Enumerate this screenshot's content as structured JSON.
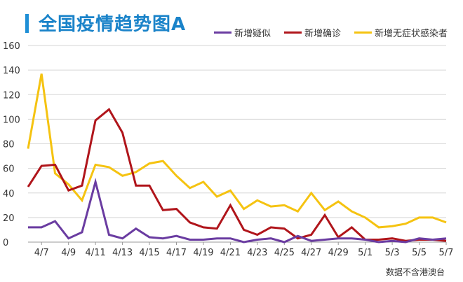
{
  "title": "全国疫情趋势图A",
  "source": "数据不含港澳台",
  "colors": {
    "suspected": "#6a3ca1",
    "confirmed": "#b0151b",
    "asymptomatic": "#f5c311",
    "title": "#1a83c9",
    "grid": "#d6d6d6"
  },
  "chart_data": {
    "type": "line",
    "ylim": [
      0,
      160
    ],
    "yticks": [
      0,
      20,
      40,
      60,
      80,
      100,
      120,
      140,
      160
    ],
    "grid": true,
    "legend_placement": "top-right",
    "x": [
      "4/6",
      "4/7",
      "4/8",
      "4/9",
      "4/10",
      "4/11",
      "4/12",
      "4/13",
      "4/14",
      "4/15",
      "4/16",
      "4/17",
      "4/18",
      "4/19",
      "4/20",
      "4/21",
      "4/22",
      "4/23",
      "4/24",
      "4/25",
      "4/26",
      "4/27",
      "4/28",
      "4/29",
      "4/30",
      "5/1",
      "5/2",
      "5/3",
      "5/4",
      "5/5",
      "5/6",
      "5/7"
    ],
    "xtick_labels": [
      "4/7",
      "4/9",
      "4/11",
      "4/13",
      "4/15",
      "4/17",
      "4/19",
      "4/21",
      "4/23",
      "4/25",
      "4/27",
      "4/29",
      "5/1",
      "5/3",
      "5/5",
      "5/7"
    ],
    "series": [
      {
        "name": "新增疑似",
        "key": "suspected",
        "values": [
          12,
          12,
          17,
          3,
          8,
          49,
          6,
          3,
          11,
          4,
          3,
          5,
          2,
          2,
          3,
          3,
          0,
          2,
          3,
          0,
          5,
          1,
          2,
          3,
          3,
          2,
          0,
          1,
          0,
          3,
          2,
          3
        ]
      },
      {
        "name": "新增确诊",
        "key": "confirmed",
        "values": [
          45,
          62,
          63,
          42,
          46,
          99,
          108,
          89,
          46,
          46,
          26,
          27,
          16,
          12,
          11,
          30,
          10,
          6,
          12,
          11,
          3,
          6,
          22,
          4,
          12,
          2,
          2,
          3,
          1,
          2,
          2,
          1
        ]
      },
      {
        "name": "新增无症状感染者",
        "key": "asymptomatic",
        "values": [
          76,
          137,
          56,
          47,
          34,
          63,
          61,
          54,
          57,
          64,
          66,
          54,
          44,
          49,
          37,
          42,
          27,
          34,
          29,
          30,
          25,
          40,
          26,
          33,
          25,
          20,
          12,
          13,
          15,
          20,
          20,
          16
        ]
      }
    ]
  }
}
